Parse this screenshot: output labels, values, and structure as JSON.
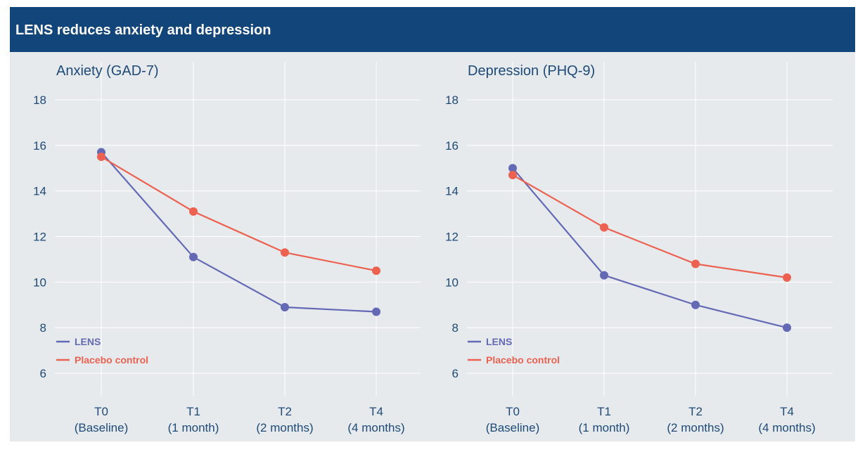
{
  "header": {
    "title": "LENS reduces anxiety and depression"
  },
  "colors": {
    "header_bg": "#12457a",
    "panel_bg": "#e7eaed",
    "text": "#1e4a78",
    "grid": "#ffffff",
    "lens": "#6469b5",
    "placebo": "#ec6150"
  },
  "chart_data": [
    {
      "type": "line",
      "title": "Anxiety (GAD-7)",
      "categories": [
        "T0\n(Baseline)",
        "T1\n(1 month)",
        "T2\n(2 months)",
        "T4\n(4 months)"
      ],
      "y_ticks": [
        6,
        8,
        10,
        12,
        14,
        16,
        18
      ],
      "ylim": [
        5,
        19
      ],
      "grid": true,
      "legend_position": "bottom-left",
      "series": [
        {
          "name": "LENS",
          "color": "#6469b5",
          "values": [
            15.7,
            11.1,
            8.9,
            8.7
          ]
        },
        {
          "name": "Placebo control",
          "color": "#ec6150",
          "values": [
            15.5,
            13.1,
            11.3,
            10.5
          ]
        }
      ]
    },
    {
      "type": "line",
      "title": "Depression (PHQ-9)",
      "categories": [
        "T0\n(Baseline)",
        "T1\n(1 month)",
        "T2\n(2 months)",
        "T4\n(4 months)"
      ],
      "y_ticks": [
        6,
        8,
        10,
        12,
        14,
        16,
        18
      ],
      "ylim": [
        5,
        19
      ],
      "grid": true,
      "legend_position": "bottom-left",
      "series": [
        {
          "name": "LENS",
          "color": "#6469b5",
          "values": [
            15.0,
            10.3,
            9.0,
            8.0
          ]
        },
        {
          "name": "Placebo control",
          "color": "#ec6150",
          "values": [
            14.7,
            12.4,
            10.8,
            10.2
          ]
        }
      ]
    }
  ]
}
